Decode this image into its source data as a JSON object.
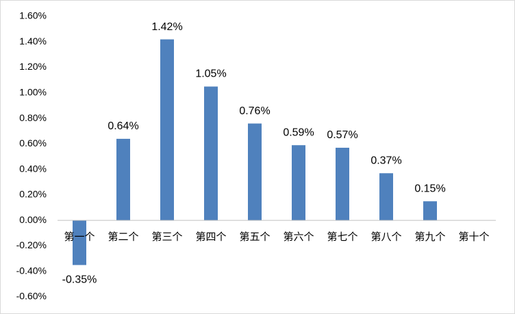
{
  "chart_data": {
    "type": "bar",
    "categories": [
      "第一个",
      "第二个",
      "第三个",
      "第四个",
      "第五个",
      "第六个",
      "第七个",
      "第八个",
      "第九个",
      "第十个"
    ],
    "values": [
      -0.35,
      0.64,
      1.42,
      1.05,
      0.76,
      0.59,
      0.57,
      0.37,
      0.15,
      null
    ],
    "value_labels": [
      "-0.35%",
      "0.64%",
      "1.42%",
      "1.05%",
      "0.76%",
      "0.59%",
      "0.57%",
      "0.37%",
      "0.15%",
      null
    ],
    "color": "#4f81bd",
    "ylim": [
      -0.6,
      1.6
    ],
    "yticks": [
      {
        "value": -0.6,
        "label": "-0.60%"
      },
      {
        "value": -0.4,
        "label": "-0.40%"
      },
      {
        "value": -0.2,
        "label": "-0.20%"
      },
      {
        "value": 0,
        "label": "0.00%"
      },
      {
        "value": 0.2,
        "label": "0.20%"
      },
      {
        "value": 0.4,
        "label": "0.40%"
      },
      {
        "value": 0.6,
        "label": "0.60%"
      },
      {
        "value": 0.8,
        "label": "0.80%"
      },
      {
        "value": 1.0,
        "label": "1.00%"
      },
      {
        "value": 1.2,
        "label": "1.20%"
      },
      {
        "value": 1.4,
        "label": "1.40%"
      },
      {
        "value": 1.6,
        "label": "1.60%"
      }
    ],
    "grid": false
  }
}
